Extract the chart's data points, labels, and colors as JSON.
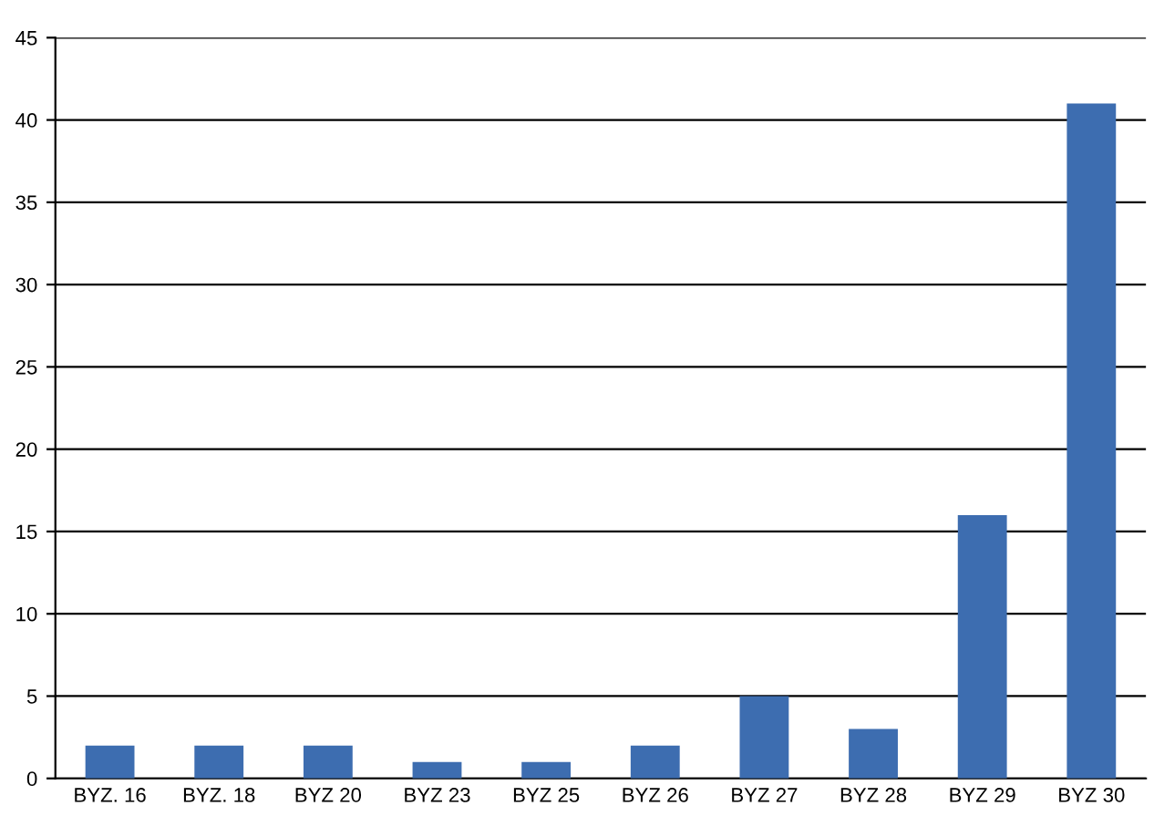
{
  "chart_data": {
    "type": "bar",
    "categories": [
      "BYZ. 16",
      "BYZ. 18",
      "BYZ 20",
      "BYZ 23",
      "BYZ 25",
      "BYZ 26",
      "BYZ 27",
      "BYZ 28",
      "BYZ 29",
      "BYZ 30"
    ],
    "values": [
      2,
      2,
      2,
      1,
      1,
      2,
      5,
      3,
      16,
      41
    ],
    "color": "#3d6db0",
    "ylim": [
      0,
      45
    ],
    "yticks": [
      0,
      5,
      10,
      15,
      20,
      25,
      30,
      35,
      40,
      45
    ],
    "grid": "y",
    "legend": false
  }
}
